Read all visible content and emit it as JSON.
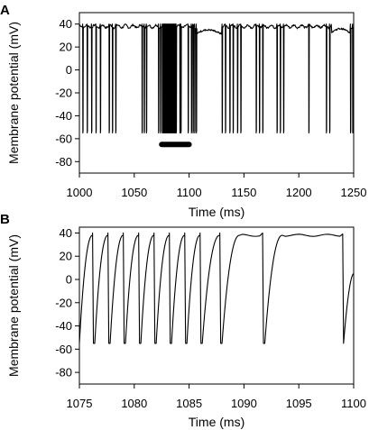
{
  "chart_data": [
    {
      "panel": "A",
      "type": "line",
      "xlabel": "Time (ms)",
      "ylabel": "Membrane potential (mV)",
      "xlim": [
        1000,
        1250
      ],
      "ylim": [
        -90,
        50
      ],
      "xticks": [
        1000,
        1050,
        1100,
        1150,
        1200,
        1250
      ],
      "yticks": [
        -80,
        -60,
        -40,
        -20,
        0,
        20,
        40
      ],
      "grid": false,
      "series": [
        {
          "baseline_mV": 38,
          "trough_mV": -55,
          "spike_times_ms": [
            1003,
            1007,
            1011,
            1015,
            1019,
            1027,
            1030,
            1033,
            1057,
            1059,
            1061,
            1072,
            1073.8,
            1075.5,
            1076.2,
            1076.9,
            1077.6,
            1078.3,
            1079.0,
            1079.7,
            1080.4,
            1081.1,
            1081.8,
            1082.5,
            1083.2,
            1083.9,
            1084.6,
            1085.3,
            1086.0,
            1086.7,
            1087.4,
            1088.1,
            1091.5,
            1092.4,
            1099.0,
            1102.0,
            1103.5,
            1105.0,
            1106.5,
            1130,
            1133,
            1137,
            1140,
            1144,
            1147,
            1161,
            1164,
            1167,
            1180,
            1183,
            1186,
            1209,
            1225,
            1228,
            1247,
            1249
          ]
        }
      ],
      "annotation": {
        "type": "bar",
        "x_range": [
          1075,
          1100
        ],
        "y": -65,
        "color": "#000000"
      }
    },
    {
      "panel": "B",
      "type": "line",
      "xlabel": "Time (ms)",
      "ylabel": "Membrane potential (mV)",
      "xlim": [
        1075,
        1100
      ],
      "ylim": [
        -90,
        45
      ],
      "xticks": [
        1075,
        1080,
        1085,
        1090,
        1095,
        1100
      ],
      "yticks": [
        -80,
        -60,
        -40,
        -20,
        0,
        20,
        40
      ],
      "grid": false,
      "series": [
        {
          "peak_mV": 40,
          "trough_mV": -55,
          "spikes": [
            {
              "rise_start_ms": 1075.0,
              "peak_ms": 1076.2
            },
            {
              "rise_start_ms": 1076.4,
              "peak_ms": 1077.6
            },
            {
              "rise_start_ms": 1077.8,
              "peak_ms": 1079.0
            },
            {
              "rise_start_ms": 1079.2,
              "peak_ms": 1080.4
            },
            {
              "rise_start_ms": 1080.6,
              "peak_ms": 1081.8
            },
            {
              "rise_start_ms": 1082.0,
              "peak_ms": 1083.2
            },
            {
              "rise_start_ms": 1083.4,
              "peak_ms": 1084.6
            },
            {
              "rise_start_ms": 1084.8,
              "peak_ms": 1086.0
            },
            {
              "rise_start_ms": 1086.2,
              "peak_ms": 1087.8
            },
            {
              "rise_start_ms": 1088.0,
              "peak_ms": 1091.7
            },
            {
              "rise_start_ms": 1091.9,
              "peak_ms": 1099.0
            }
          ],
          "end_value_mV": 5
        }
      ]
    }
  ]
}
